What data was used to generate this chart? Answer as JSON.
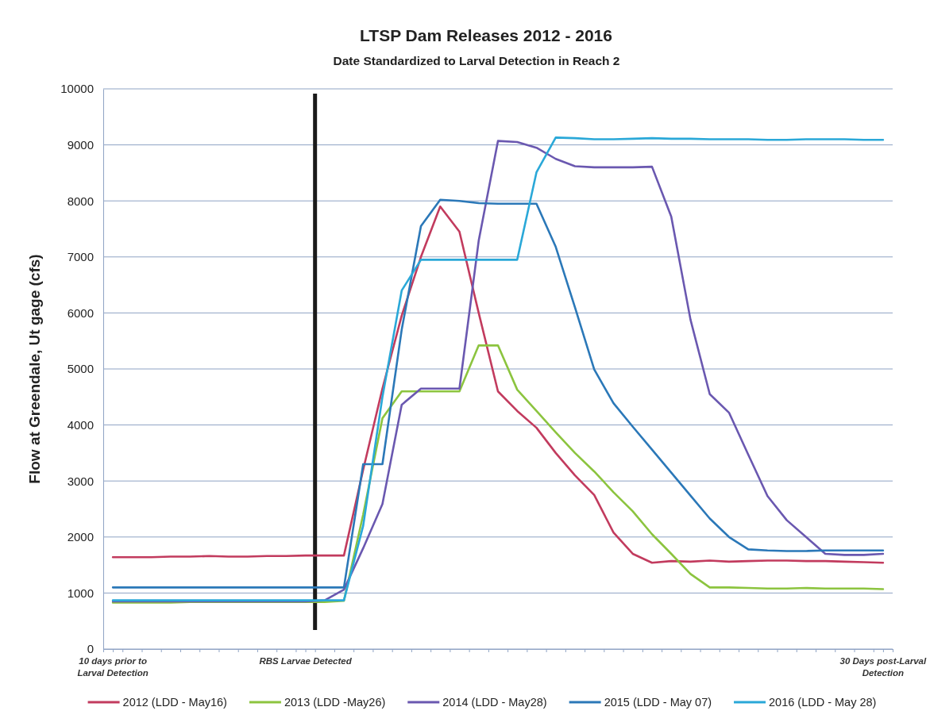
{
  "chart_data": {
    "type": "line",
    "title": "LTSP Dam Releases 2012 - 2016",
    "subtitle": "Date Standardized to Larval Detection in Reach 2",
    "ylabel": "Flow at Greendale, Ut gage (cfs)",
    "x": [
      -10,
      -9,
      -8,
      -7,
      -6,
      -5,
      -4,
      -3,
      -2,
      -1,
      0,
      1,
      2,
      3,
      4,
      5,
      6,
      7,
      8,
      9,
      10,
      11,
      12,
      13,
      14,
      15,
      16,
      17,
      18,
      19,
      20,
      21,
      22,
      23,
      24,
      25,
      26,
      27,
      28,
      29,
      30
    ],
    "series": [
      {
        "name": "2012 (LDD - May16)",
        "color": "#c23b5e",
        "values": [
          1640,
          1640,
          1640,
          1650,
          1650,
          1660,
          1650,
          1650,
          1660,
          1660,
          1670,
          1670,
          1670,
          3200,
          4650,
          5950,
          7000,
          7900,
          7450,
          6000,
          4600,
          4250,
          3950,
          3500,
          3100,
          2750,
          2080,
          1700,
          1540,
          1570,
          1560,
          1580,
          1560,
          1570,
          1580,
          1580,
          1570,
          1570,
          1560,
          1550,
          1540
        ]
      },
      {
        "name": "2013 (LDD -May26)",
        "color": "#8cc43f",
        "values": [
          830,
          830,
          830,
          830,
          840,
          840,
          840,
          840,
          840,
          840,
          840,
          840,
          860,
          2400,
          4120,
          4600,
          4600,
          4600,
          4600,
          5420,
          5420,
          4630,
          4250,
          3870,
          3500,
          3170,
          2800,
          2460,
          2050,
          1700,
          1340,
          1100,
          1100,
          1090,
          1080,
          1080,
          1090,
          1080,
          1080,
          1080,
          1070
        ]
      },
      {
        "name": "2014 (LDD - May28)",
        "color": "#6a58b0",
        "values": [
          850,
          850,
          850,
          850,
          850,
          850,
          850,
          850,
          850,
          850,
          850,
          870,
          1060,
          1800,
          2590,
          4360,
          4650,
          4650,
          4650,
          7290,
          9070,
          9050,
          8950,
          8750,
          8620,
          8600,
          8600,
          8600,
          8610,
          7720,
          5880,
          4550,
          4220,
          3470,
          2730,
          2300,
          2000,
          1700,
          1680,
          1680,
          1700
        ]
      },
      {
        "name": "2015 (LDD - May 07)",
        "color": "#2b78b8",
        "values": [
          1100,
          1100,
          1100,
          1100,
          1100,
          1100,
          1100,
          1100,
          1100,
          1100,
          1100,
          1100,
          1100,
          3300,
          3300,
          5700,
          7550,
          8020,
          8000,
          7960,
          7950,
          7950,
          7950,
          7180,
          6100,
          4990,
          4390,
          3970,
          3560,
          3150,
          2740,
          2330,
          2000,
          1780,
          1760,
          1750,
          1750,
          1760,
          1760,
          1760,
          1760
        ]
      },
      {
        "name": "2016 (LDD - May 28)",
        "color": "#2aa8d8",
        "values": [
          870,
          870,
          870,
          870,
          870,
          870,
          870,
          870,
          870,
          870,
          870,
          870,
          870,
          2200,
          4500,
          6400,
          6950,
          6950,
          6950,
          6950,
          6950,
          6950,
          8510,
          9130,
          9120,
          9100,
          9100,
          9110,
          9120,
          9110,
          9110,
          9100,
          9100,
          9100,
          9090,
          9090,
          9100,
          9100,
          9100,
          9090,
          9090
        ]
      }
    ],
    "xlim": [
      -10.5,
      30.5
    ],
    "xticks": [
      {
        "value": -10,
        "label": "10 days prior to\nLarval Detection"
      },
      {
        "value": 0,
        "label": "RBS Larvae Detected"
      },
      {
        "value": 30,
        "label": "30 Days post-Larval\nDetection"
      },
      {
        "value": -10.5,
        "label": null
      },
      {
        "value": -9.5,
        "label": null
      },
      {
        "value": -8.5,
        "label": null
      },
      {
        "value": -7.5,
        "label": null
      },
      {
        "value": -6.5,
        "label": null
      },
      {
        "value": -5.5,
        "label": null
      },
      {
        "value": -4.5,
        "label": null
      },
      {
        "value": -3.5,
        "label": null
      },
      {
        "value": -2.5,
        "label": null
      },
      {
        "value": -1.5,
        "label": null
      },
      {
        "value": -0.5,
        "label": null
      },
      {
        "value": 0.5,
        "label": null
      },
      {
        "value": 1.5,
        "label": null
      },
      {
        "value": 2.5,
        "label": null
      },
      {
        "value": 3.5,
        "label": null
      },
      {
        "value": 4.5,
        "label": null
      },
      {
        "value": 5.5,
        "label": null
      },
      {
        "value": 6.5,
        "label": null
      },
      {
        "value": 7.5,
        "label": null
      },
      {
        "value": 8.5,
        "label": null
      },
      {
        "value": 9.5,
        "label": null
      },
      {
        "value": 10.5,
        "label": null
      },
      {
        "value": 11.5,
        "label": null
      },
      {
        "value": 12.5,
        "label": null
      },
      {
        "value": 13.5,
        "label": null
      },
      {
        "value": 14.5,
        "label": null
      },
      {
        "value": 15.5,
        "label": null
      },
      {
        "value": 16.5,
        "label": null
      },
      {
        "value": 17.5,
        "label": null
      },
      {
        "value": 18.5,
        "label": null
      },
      {
        "value": 19.5,
        "label": null
      },
      {
        "value": 20.5,
        "label": null
      },
      {
        "value": 21.5,
        "label": null
      },
      {
        "value": 22.5,
        "label": null
      },
      {
        "value": 23.5,
        "label": null
      },
      {
        "value": 24.5,
        "label": null
      },
      {
        "value": 25.5,
        "label": null
      },
      {
        "value": 26.5,
        "label": null
      },
      {
        "value": 27.5,
        "label": null
      },
      {
        "value": 28.5,
        "label": null
      },
      {
        "value": 29.5,
        "label": null
      },
      {
        "value": 30.5,
        "label": null
      }
    ],
    "ylim": [
      0,
      10000
    ],
    "yticks": [
      0,
      1000,
      2000,
      3000,
      4000,
      5000,
      6000,
      7000,
      8000,
      9000,
      10000
    ],
    "grid": "y",
    "legend": "bottom",
    "marker": "none",
    "line_style": "solid",
    "ref_lines": [
      {
        "axis": "x",
        "value": 0.5,
        "color": "#1a1a1a"
      }
    ]
  }
}
